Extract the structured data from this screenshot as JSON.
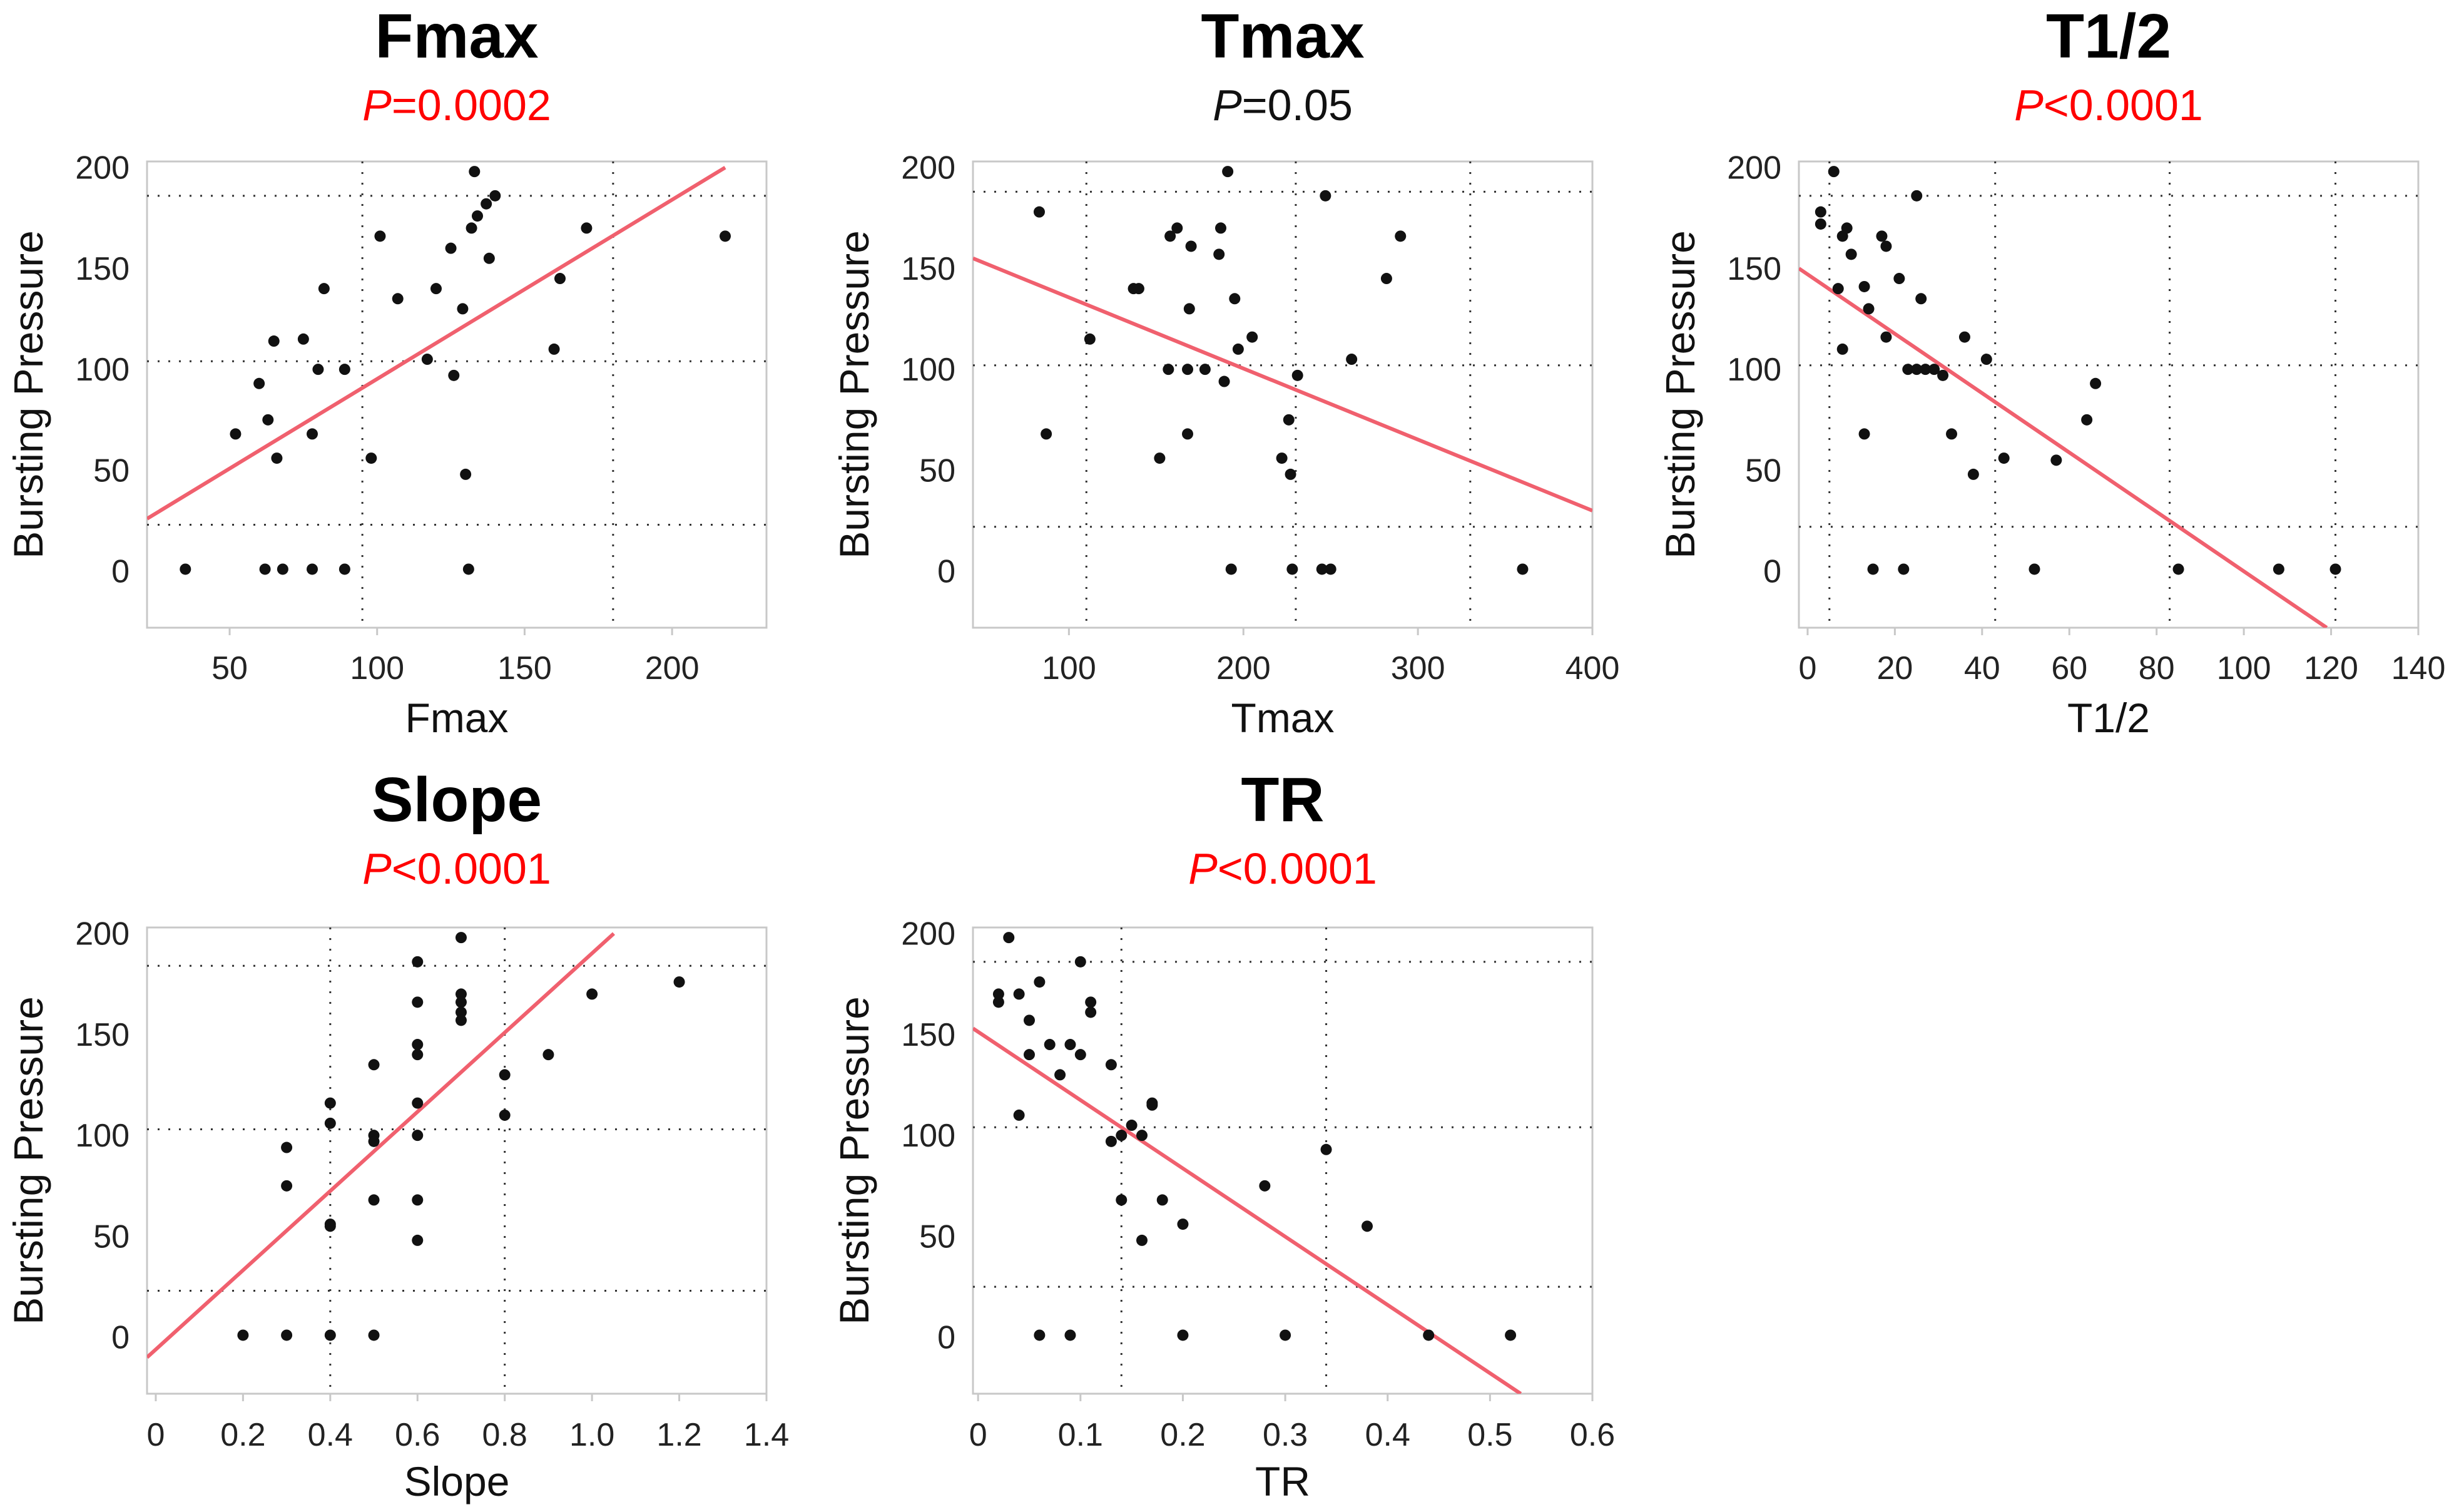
{
  "colors": {
    "significant": "#ff0000",
    "not_significant": "#111111",
    "fit_line": "#f0606e",
    "points": "#111111"
  },
  "chart_data": [
    {
      "type": "scatter",
      "title": "Fmax",
      "p_value": {
        "letter": "P",
        "rest": "=0.0002",
        "significant": true
      },
      "xlabel": "Fmax",
      "ylabel": "Bursting Pressure",
      "xlim": [
        22,
        232
      ],
      "ylim": [
        -28,
        203
      ],
      "x_ticks": [
        50,
        100,
        150,
        200
      ],
      "y_ticks": [
        0,
        50,
        100,
        150,
        200
      ],
      "grid_x": [
        95,
        180
      ],
      "grid_y": [
        23,
        104,
        186
      ],
      "fit_line": {
        "x": [
          22,
          218
        ],
        "y": [
          26,
          200
        ]
      },
      "points": [
        [
          35,
          1
        ],
        [
          52,
          68
        ],
        [
          60,
          93
        ],
        [
          62,
          1
        ],
        [
          63,
          75
        ],
        [
          65,
          114
        ],
        [
          66,
          56
        ],
        [
          68,
          1
        ],
        [
          75,
          115
        ],
        [
          78,
          68
        ],
        [
          78,
          1
        ],
        [
          80,
          100
        ],
        [
          82,
          140
        ],
        [
          89,
          100
        ],
        [
          89,
          1
        ],
        [
          98,
          56
        ],
        [
          101,
          166
        ],
        [
          107,
          135
        ],
        [
          117,
          105
        ],
        [
          120,
          140
        ],
        [
          125,
          160
        ],
        [
          126,
          97
        ],
        [
          129,
          130
        ],
        [
          130,
          48
        ],
        [
          131,
          1
        ],
        [
          132,
          170
        ],
        [
          133,
          198
        ],
        [
          134,
          176
        ],
        [
          137,
          182
        ],
        [
          138,
          155
        ],
        [
          140,
          186
        ],
        [
          160,
          110
        ],
        [
          162,
          145
        ],
        [
          171,
          170
        ],
        [
          218,
          166
        ]
      ]
    },
    {
      "type": "scatter",
      "title": "Tmax",
      "p_value": {
        "letter": "P",
        "rest": "=0.05",
        "significant": false
      },
      "xlabel": "Tmax",
      "ylabel": "Bursting Pressure",
      "xlim": [
        45,
        400
      ],
      "ylim": [
        -28,
        203
      ],
      "x_ticks": [
        100,
        200,
        300,
        400
      ],
      "y_ticks": [
        0,
        50,
        100,
        150,
        200
      ],
      "grid_x": [
        110,
        230,
        330
      ],
      "grid_y": [
        22,
        102,
        188
      ],
      "fit_line": {
        "x": [
          45,
          400
        ],
        "y": [
          155,
          30
        ]
      },
      "points": [
        [
          83,
          178
        ],
        [
          87,
          68
        ],
        [
          112,
          115
        ],
        [
          137,
          140
        ],
        [
          140,
          140
        ],
        [
          152,
          56
        ],
        [
          157,
          100
        ],
        [
          158,
          166
        ],
        [
          162,
          170
        ],
        [
          168,
          100
        ],
        [
          168,
          68
        ],
        [
          169,
          130
        ],
        [
          170,
          161
        ],
        [
          178,
          100
        ],
        [
          186,
          157
        ],
        [
          187,
          170
        ],
        [
          189,
          94
        ],
        [
          191,
          198
        ],
        [
          193,
          1
        ],
        [
          195,
          135
        ],
        [
          197,
          110
        ],
        [
          205,
          116
        ],
        [
          222,
          56
        ],
        [
          226,
          75
        ],
        [
          227,
          48
        ],
        [
          228,
          1
        ],
        [
          231,
          97
        ],
        [
          245,
          1
        ],
        [
          247,
          186
        ],
        [
          250,
          1
        ],
        [
          262,
          105
        ],
        [
          282,
          145
        ],
        [
          290,
          166
        ],
        [
          360,
          1
        ]
      ]
    },
    {
      "type": "scatter",
      "title": "T1/2",
      "p_value": {
        "letter": "P",
        "rest": "<0.0001",
        "significant": true
      },
      "xlabel": "T1/2",
      "ylabel": "Bursting Pressure",
      "xlim": [
        -2,
        140
      ],
      "ylim": [
        -28,
        203
      ],
      "x_ticks": [
        0,
        20,
        40,
        60,
        80,
        100,
        120,
        140
      ],
      "x_tick_labels": [
        "0",
        "20",
        "40",
        "60",
        "80",
        "100",
        "120",
        "140"
      ],
      "y_ticks": [
        0,
        50,
        100,
        150,
        200
      ],
      "grid_x": [
        5,
        43,
        83,
        121
      ],
      "grid_y": [
        22,
        102,
        186
      ],
      "fit_line": {
        "x": [
          -2,
          119
        ],
        "y": [
          150,
          -28
        ]
      },
      "points": [
        [
          3,
          172
        ],
        [
          3,
          178
        ],
        [
          6,
          198
        ],
        [
          7,
          140
        ],
        [
          8,
          110
        ],
        [
          8,
          166
        ],
        [
          9,
          170
        ],
        [
          10,
          157
        ],
        [
          13,
          68
        ],
        [
          13,
          141
        ],
        [
          14,
          130
        ],
        [
          15,
          1
        ],
        [
          17,
          166
        ],
        [
          18,
          161
        ],
        [
          18,
          116
        ],
        [
          21,
          145
        ],
        [
          22,
          1
        ],
        [
          23,
          100
        ],
        [
          25,
          100
        ],
        [
          25,
          186
        ],
        [
          26,
          135
        ],
        [
          27,
          100
        ],
        [
          29,
          100
        ],
        [
          31,
          97
        ],
        [
          33,
          68
        ],
        [
          36,
          116
        ],
        [
          38,
          48
        ],
        [
          41,
          105
        ],
        [
          45,
          56
        ],
        [
          52,
          1
        ],
        [
          57,
          55
        ],
        [
          64,
          75
        ],
        [
          66,
          93
        ],
        [
          85,
          1
        ],
        [
          108,
          1
        ],
        [
          121,
          1
        ]
      ]
    },
    {
      "type": "scatter",
      "title": "Slope",
      "p_value": {
        "letter": "P",
        "rest": "<0.0001",
        "significant": true
      },
      "xlabel": "Slope",
      "ylabel": "Bursting Pressure",
      "xlim": [
        -0.02,
        1.4
      ],
      "ylim": [
        -28,
        203
      ],
      "x_ticks": [
        0,
        0.2,
        0.4,
        0.6,
        0.8,
        1.0,
        1.2,
        1.4
      ],
      "x_tick_labels": [
        "0",
        "0.2",
        "0.4",
        "0.6",
        "0.8",
        "1.0",
        "1.2",
        "1.4"
      ],
      "y_ticks": [
        0,
        50,
        100,
        150,
        200
      ],
      "grid_x": [
        0.4,
        0.8
      ],
      "grid_y": [
        23,
        103,
        184
      ],
      "fit_line": {
        "x": [
          -0.02,
          1.05
        ],
        "y": [
          -10,
          200
        ]
      },
      "points": [
        [
          0.2,
          1
        ],
        [
          0.3,
          94
        ],
        [
          0.3,
          75
        ],
        [
          0.3,
          1
        ],
        [
          0.4,
          116
        ],
        [
          0.4,
          106
        ],
        [
          0.4,
          56
        ],
        [
          0.4,
          55
        ],
        [
          0.4,
          1
        ],
        [
          0.5,
          135
        ],
        [
          0.5,
          100
        ],
        [
          0.5,
          97
        ],
        [
          0.5,
          68
        ],
        [
          0.5,
          1
        ],
        [
          0.6,
          186
        ],
        [
          0.6,
          166
        ],
        [
          0.6,
          145
        ],
        [
          0.6,
          140
        ],
        [
          0.6,
          116
        ],
        [
          0.6,
          100
        ],
        [
          0.6,
          68
        ],
        [
          0.6,
          48
        ],
        [
          0.7,
          198
        ],
        [
          0.7,
          170
        ],
        [
          0.7,
          166
        ],
        [
          0.7,
          161
        ],
        [
          0.7,
          157
        ],
        [
          0.8,
          130
        ],
        [
          0.8,
          110
        ],
        [
          0.9,
          140
        ],
        [
          1.0,
          170
        ],
        [
          1.2,
          176
        ]
      ]
    },
    {
      "type": "scatter",
      "title": "TR",
      "p_value": {
        "letter": "P",
        "rest": "<0.0001",
        "significant": true
      },
      "xlabel": "TR",
      "ylabel": "Bursting Pressure",
      "xlim": [
        -0.005,
        0.6
      ],
      "ylim": [
        -28,
        203
      ],
      "x_ticks": [
        0,
        0.1,
        0.2,
        0.3,
        0.4,
        0.5,
        0.6
      ],
      "x_tick_labels": [
        "0",
        "0.1",
        "0.2",
        "0.3",
        "0.4",
        "0.5",
        "0.6"
      ],
      "y_ticks": [
        0,
        50,
        100,
        150,
        200
      ],
      "grid_x": [
        0.14,
        0.34
      ],
      "grid_y": [
        25,
        104,
        186
      ],
      "fit_line": {
        "x": [
          -0.005,
          0.53
        ],
        "y": [
          153,
          -28
        ]
      },
      "points": [
        [
          0.02,
          166
        ],
        [
          0.02,
          170
        ],
        [
          0.03,
          198
        ],
        [
          0.04,
          110
        ],
        [
          0.04,
          170
        ],
        [
          0.05,
          157
        ],
        [
          0.05,
          140
        ],
        [
          0.06,
          176
        ],
        [
          0.06,
          1
        ],
        [
          0.07,
          145
        ],
        [
          0.08,
          130
        ],
        [
          0.09,
          1
        ],
        [
          0.09,
          145
        ],
        [
          0.1,
          140
        ],
        [
          0.1,
          186
        ],
        [
          0.11,
          161
        ],
        [
          0.11,
          166
        ],
        [
          0.13,
          135
        ],
        [
          0.13,
          97
        ],
        [
          0.14,
          100
        ],
        [
          0.14,
          68
        ],
        [
          0.15,
          105
        ],
        [
          0.16,
          100
        ],
        [
          0.16,
          48
        ],
        [
          0.17,
          115
        ],
        [
          0.17,
          116
        ],
        [
          0.18,
          68
        ],
        [
          0.2,
          56
        ],
        [
          0.2,
          1
        ],
        [
          0.28,
          75
        ],
        [
          0.3,
          1
        ],
        [
          0.34,
          93
        ],
        [
          0.38,
          55
        ],
        [
          0.44,
          1
        ],
        [
          0.52,
          1
        ]
      ]
    }
  ]
}
